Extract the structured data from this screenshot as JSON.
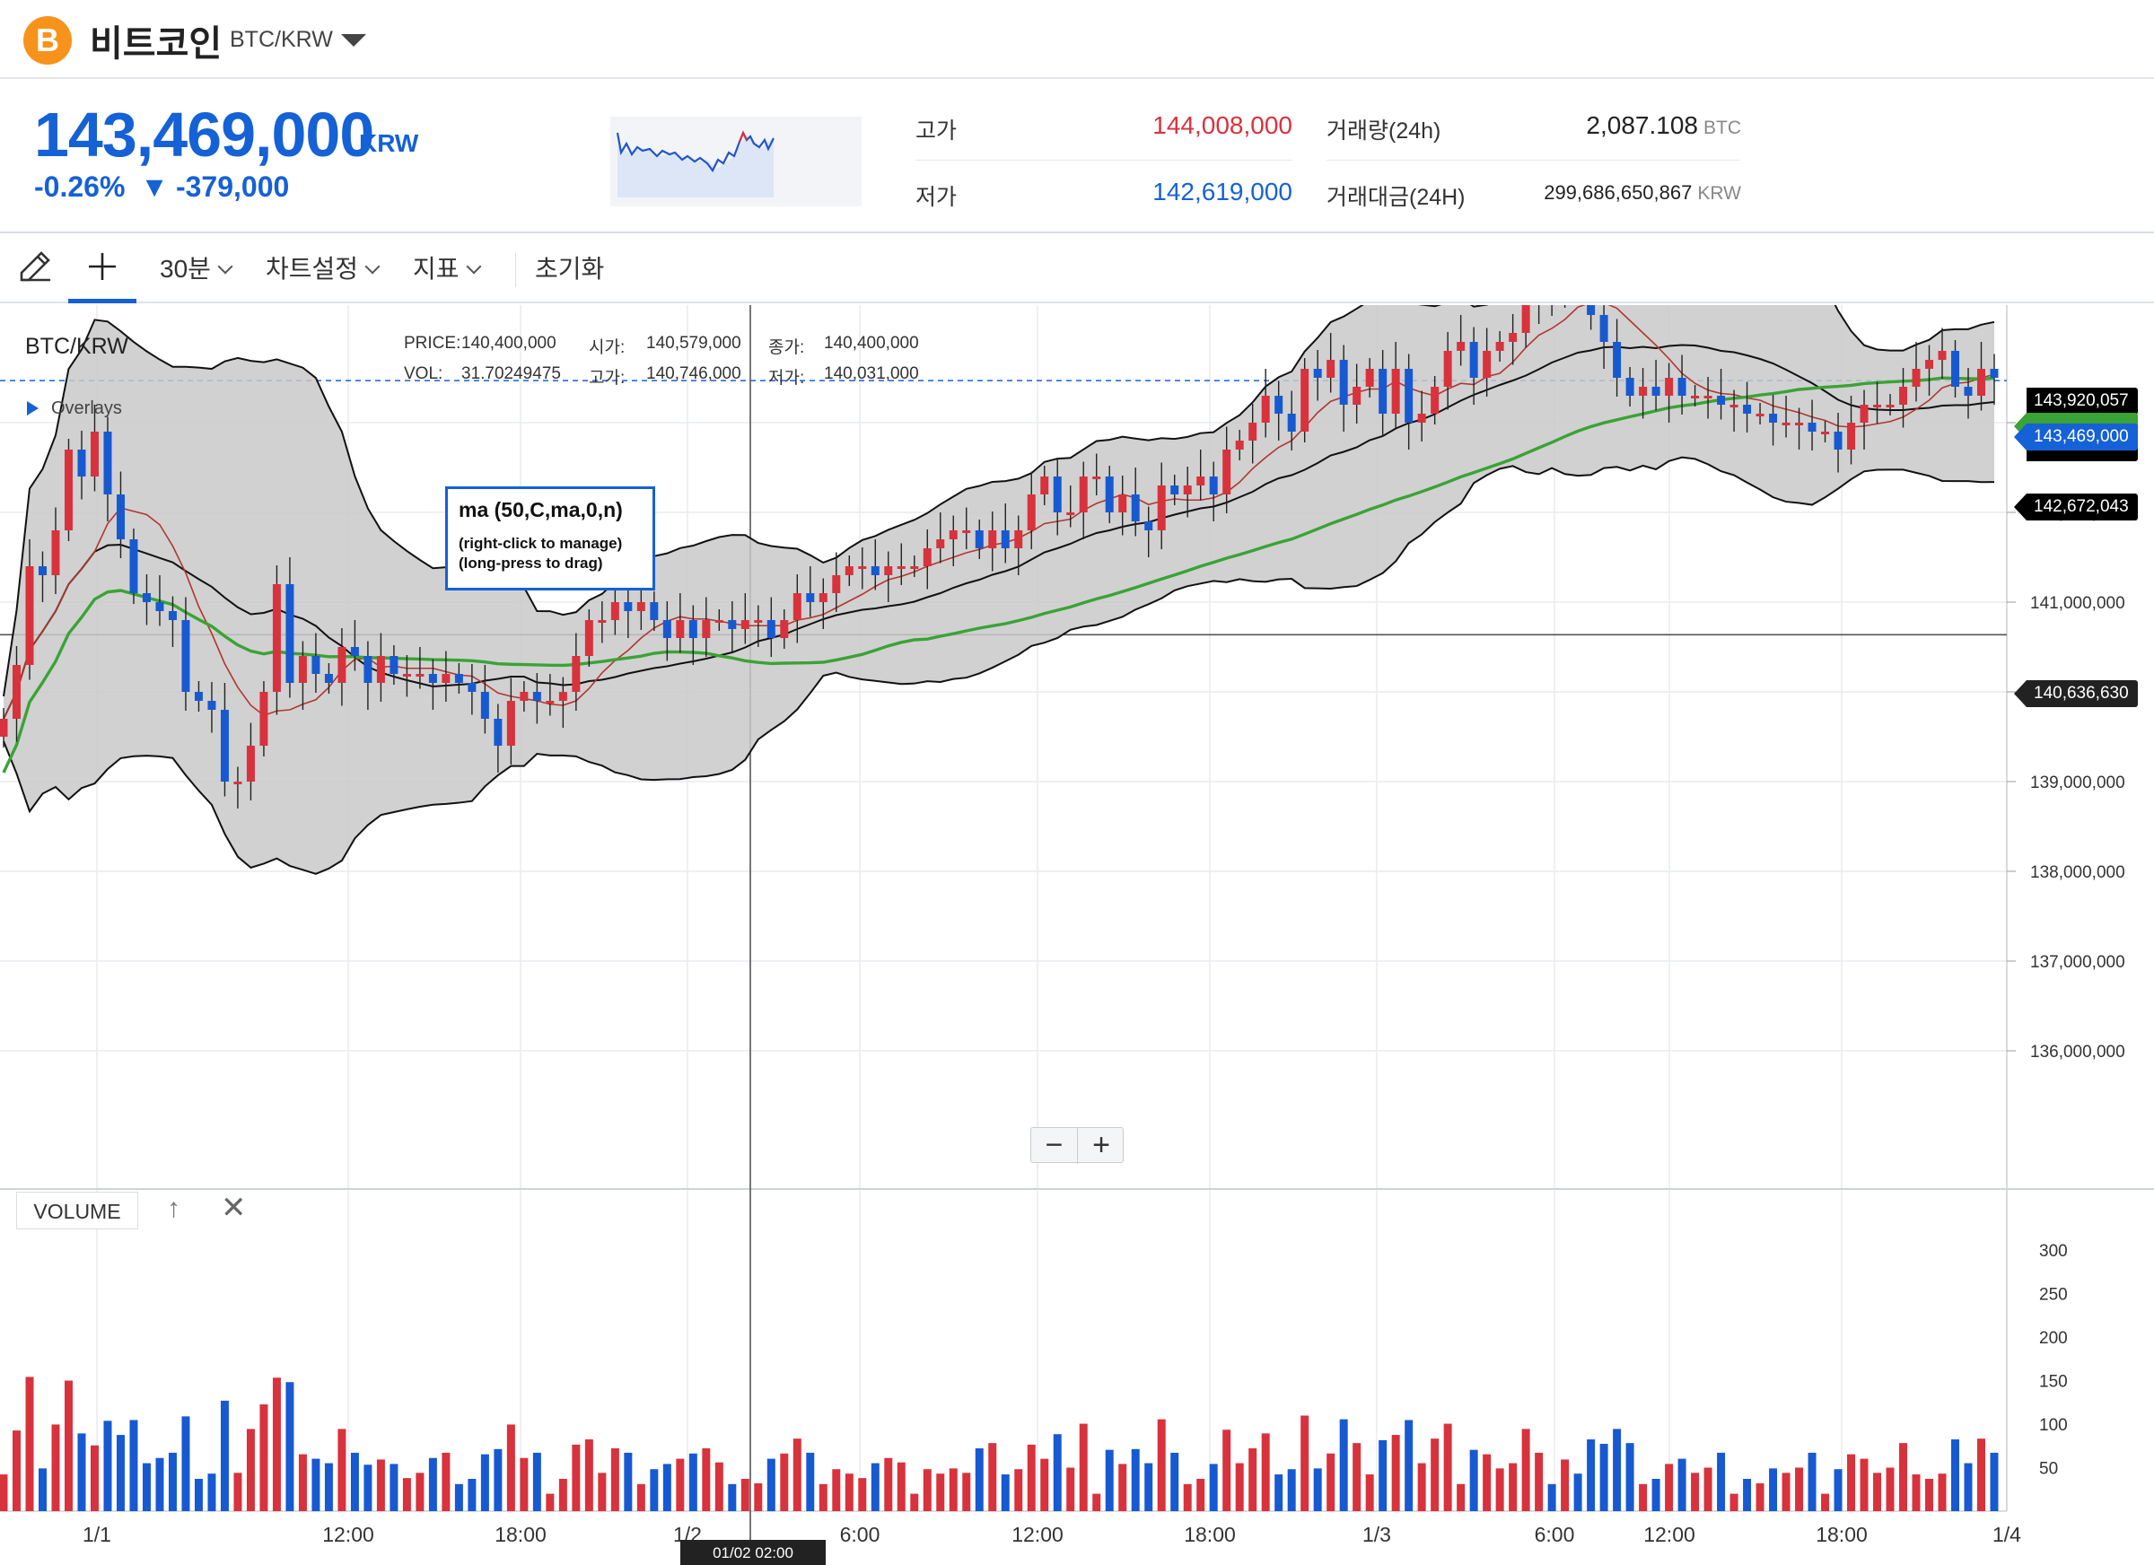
{
  "header": {
    "coin_logo_glyph": "B",
    "coin_name": "비트코인",
    "coin_pair": "BTC/KRW"
  },
  "ticker": {
    "price": "143,469,000",
    "unit": "KRW",
    "change_pct": "-0.26%",
    "change_arrow": "▼",
    "change_abs": "-379,000",
    "high_label": "고가",
    "high_value": "144,008,000",
    "low_label": "저가",
    "low_value": "142,619,000",
    "volume_label": "거래량(24h)",
    "volume_value": "2,087.108",
    "volume_unit": "BTC",
    "amount_label": "거래대금(24H)",
    "amount_value": "299,686,650,867",
    "amount_unit": "KRW"
  },
  "toolbar": {
    "interval": "30분",
    "chart_settings": "차트설정",
    "indicators": "지표",
    "reset": "초기화"
  },
  "chart": {
    "title": "BTC/KRW",
    "overlays_label": "Overlays",
    "legend": {
      "price_label": "PRICE:",
      "price_value": "140,400,000",
      "open_label": "시가:",
      "open_value": "140,579,000",
      "close_label": "종가:",
      "close_value": "140,400,000",
      "vol_label": "VOL:",
      "vol_value": "31.70249475",
      "high_label": "고가:",
      "high_value": "140,746,000",
      "low_label": "저가:",
      "low_value": "140,031,000"
    },
    "ma_tooltip": {
      "title": "ma (50,C,ma,0,n)",
      "hint1": "(right-click to manage)",
      "hint2": "(long-press to drag)"
    },
    "zoom_out": "−",
    "zoom_in": "+",
    "volume_label": "VOLUME",
    "volume_up": "↑",
    "volume_close": "✕",
    "crosshair_time": "01/02 02:00",
    "price_tags": {
      "bb_upper": "143,920,057",
      "current": "143,469,000",
      "bb_lower": "142,672,043",
      "crosshair": "140,636,630"
    },
    "colors": {
      "up": "#d8323c",
      "down": "#1759d1",
      "ma50": "#3aa335",
      "ma_short": "#b2362f",
      "band_fill": "#c9c9c9"
    }
  },
  "chart_data": {
    "type": "candlestick",
    "title": "BTC/KRW",
    "interval": "30분",
    "y_ticks": [
      136000000,
      137000000,
      138000000,
      139000000,
      140000000,
      141000000,
      142000000,
      143000000
    ],
    "y_tick_labels": [
      "136,000,000",
      "137,000,000",
      "138,000,000",
      "139,000,000",
      "140,000,000",
      "141,000,000",
      "142,000,000",
      "143,000,000"
    ],
    "x_tick_labels": [
      "1/1",
      "12:00",
      "18:00",
      "1/2",
      "6:00",
      "12:00",
      "18:00",
      "1/3",
      "6:00",
      "12:00",
      "18:00",
      "1/4"
    ],
    "volume_ticks": [
      50,
      100,
      150,
      200,
      250,
      300
    ],
    "closes": [
      139700000,
      140300000,
      141400000,
      141300000,
      141800000,
      142700000,
      142400000,
      142900000,
      142200000,
      141700000,
      141100000,
      141000000,
      140900000,
      140800000,
      140000000,
      139900000,
      139800000,
      139000000,
      139000000,
      139400000,
      140000000,
      141200000,
      140100000,
      140400000,
      140200000,
      140100000,
      140500000,
      140400000,
      140100000,
      140400000,
      140200000,
      140200000,
      140200000,
      140100000,
      140200000,
      140100000,
      140000000,
      139700000,
      139400000,
      139900000,
      140000000,
      139900000,
      139900000,
      140000000,
      140400000,
      140800000,
      140800000,
      141000000,
      140900000,
      141000000,
      140800000,
      140600000,
      140800000,
      140600000,
      140800000,
      140800000,
      140700000,
      140800000,
      140800000,
      140600000,
      140800000,
      141100000,
      141000000,
      141100000,
      141300000,
      141400000,
      141400000,
      141300000,
      141400000,
      141400000,
      141400000,
      141600000,
      141700000,
      141800000,
      141800000,
      141600000,
      141800000,
      141600000,
      141800000,
      142200000,
      142400000,
      142000000,
      142000000,
      142400000,
      142400000,
      142000000,
      142200000,
      141900000,
      141800000,
      142300000,
      142200000,
      142300000,
      142400000,
      142200000,
      142700000,
      142800000,
      143000000,
      143300000,
      143100000,
      142900000,
      143600000,
      143500000,
      143700000,
      143200000,
      143400000,
      143600000,
      143100000,
      143600000,
      143000000,
      143100000,
      143400000,
      143800000,
      143900000,
      143500000,
      143800000,
      143900000,
      144000000,
      144400000,
      144500000,
      144400000,
      144700000,
      144600000,
      144200000,
      143900000,
      143500000,
      143300000,
      143400000,
      143300000,
      143500000,
      143300000,
      143300000,
      143300000,
      143200000,
      143200000,
      143100000,
      143100000,
      143000000,
      143000000,
      143000000,
      142900000,
      142900000,
      142700000,
      143000000,
      143200000,
      143200000,
      143200000,
      143400000,
      143600000,
      143700000,
      143800000,
      143400000,
      143300000,
      143600000,
      143500000
    ]
  }
}
